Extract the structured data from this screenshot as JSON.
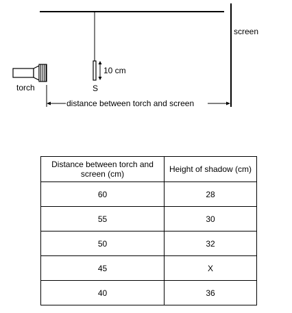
{
  "diagram": {
    "screen_label": "screen",
    "torch_label": "torch",
    "object_label": "S",
    "object_height_label": "10 cm",
    "distance_label": "distance between torch and screen"
  },
  "table": {
    "headers": [
      "Distance between torch and screen (cm)",
      "Height of shadow (cm)"
    ],
    "rows": [
      [
        "60",
        "28"
      ],
      [
        "55",
        "30"
      ],
      [
        "50",
        "32"
      ],
      [
        "45",
        "X"
      ],
      [
        "40",
        "36"
      ]
    ]
  }
}
